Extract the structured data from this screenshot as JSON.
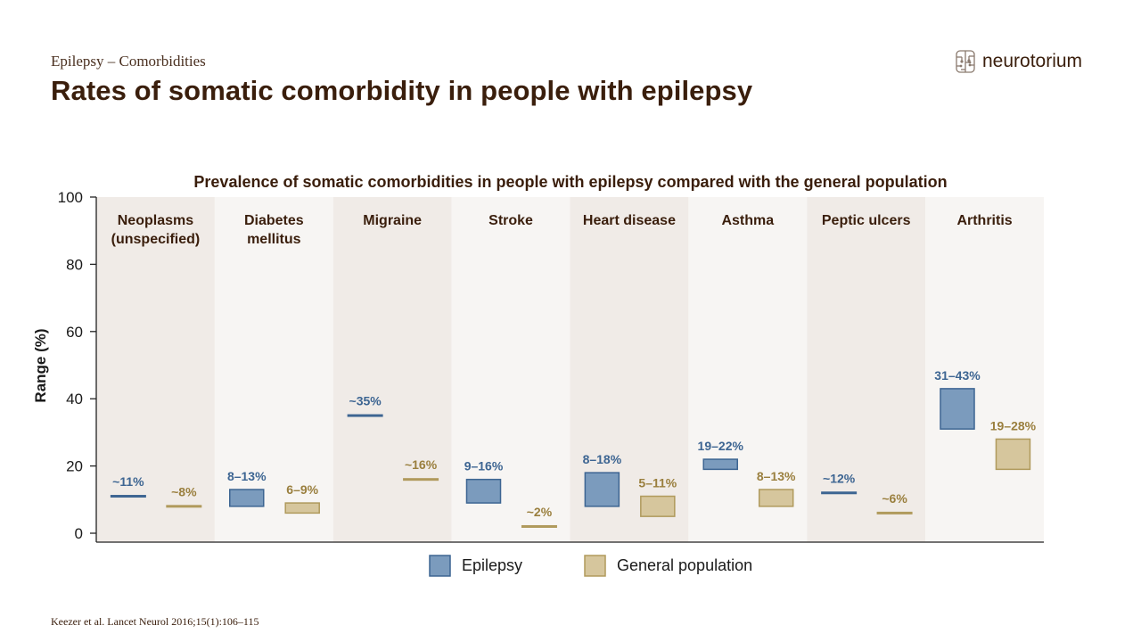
{
  "header": {
    "breadcrumb": "Epilepsy – Comorbidities",
    "title": "Rates of somatic comorbidity in people with epilepsy",
    "logo_text": "neurotorium",
    "logo_icon": "brain-circuit-icon"
  },
  "footer": {
    "source": "Keezer et al. Lancet Neurol 2016;15(1):106–115"
  },
  "colors": {
    "epilepsy_fill": "#7b9bbd",
    "epilepsy_stroke": "#3d6592",
    "epilepsy_label": "#3d6592",
    "general_fill": "#d6c69d",
    "general_stroke": "#b09a5c",
    "general_label": "#9a7f3e",
    "band_dark": "#f0ebe7",
    "band_light": "#f7f5f3",
    "text_dark": "#3a1e0c"
  },
  "chart_data": {
    "type": "bar",
    "subtype": "floating-range",
    "title": "Prevalence of somatic comorbidities in people with epilepsy compared with the general population",
    "ylabel": "Range (%)",
    "ylim": [
      0,
      100
    ],
    "yticks": [
      "0",
      "20",
      "40",
      "60",
      "80",
      "100"
    ],
    "legend_position": "bottom",
    "categories": [
      [
        "Neoplasms",
        "(unspecified)"
      ],
      [
        "Diabetes",
        "mellitus"
      ],
      [
        "Migraine"
      ],
      [
        "Stroke"
      ],
      [
        "Heart disease"
      ],
      [
        "Asthma"
      ],
      [
        "Peptic ulcers"
      ],
      [
        "Arthritis"
      ]
    ],
    "series": [
      {
        "name": "Epilepsy",
        "ranges": [
          [
            11,
            11
          ],
          [
            8,
            13
          ],
          [
            35,
            35
          ],
          [
            9,
            16
          ],
          [
            8,
            18
          ],
          [
            19,
            22
          ],
          [
            12,
            12
          ],
          [
            31,
            43
          ]
        ],
        "labels": [
          "~11%",
          "8–13%",
          "~35%",
          "9–16%",
          "8–18%",
          "19–22%",
          "~12%",
          "31–43%"
        ]
      },
      {
        "name": "General population",
        "ranges": [
          [
            8,
            8
          ],
          [
            6,
            9
          ],
          [
            16,
            16
          ],
          [
            2,
            2
          ],
          [
            5,
            11
          ],
          [
            8,
            13
          ],
          [
            6,
            6
          ],
          [
            19,
            28
          ]
        ],
        "labels": [
          "~8%",
          "6–9%",
          "~16%",
          "~2%",
          "5–11%",
          "8–13%",
          "~6%",
          "19–28%"
        ]
      }
    ]
  }
}
